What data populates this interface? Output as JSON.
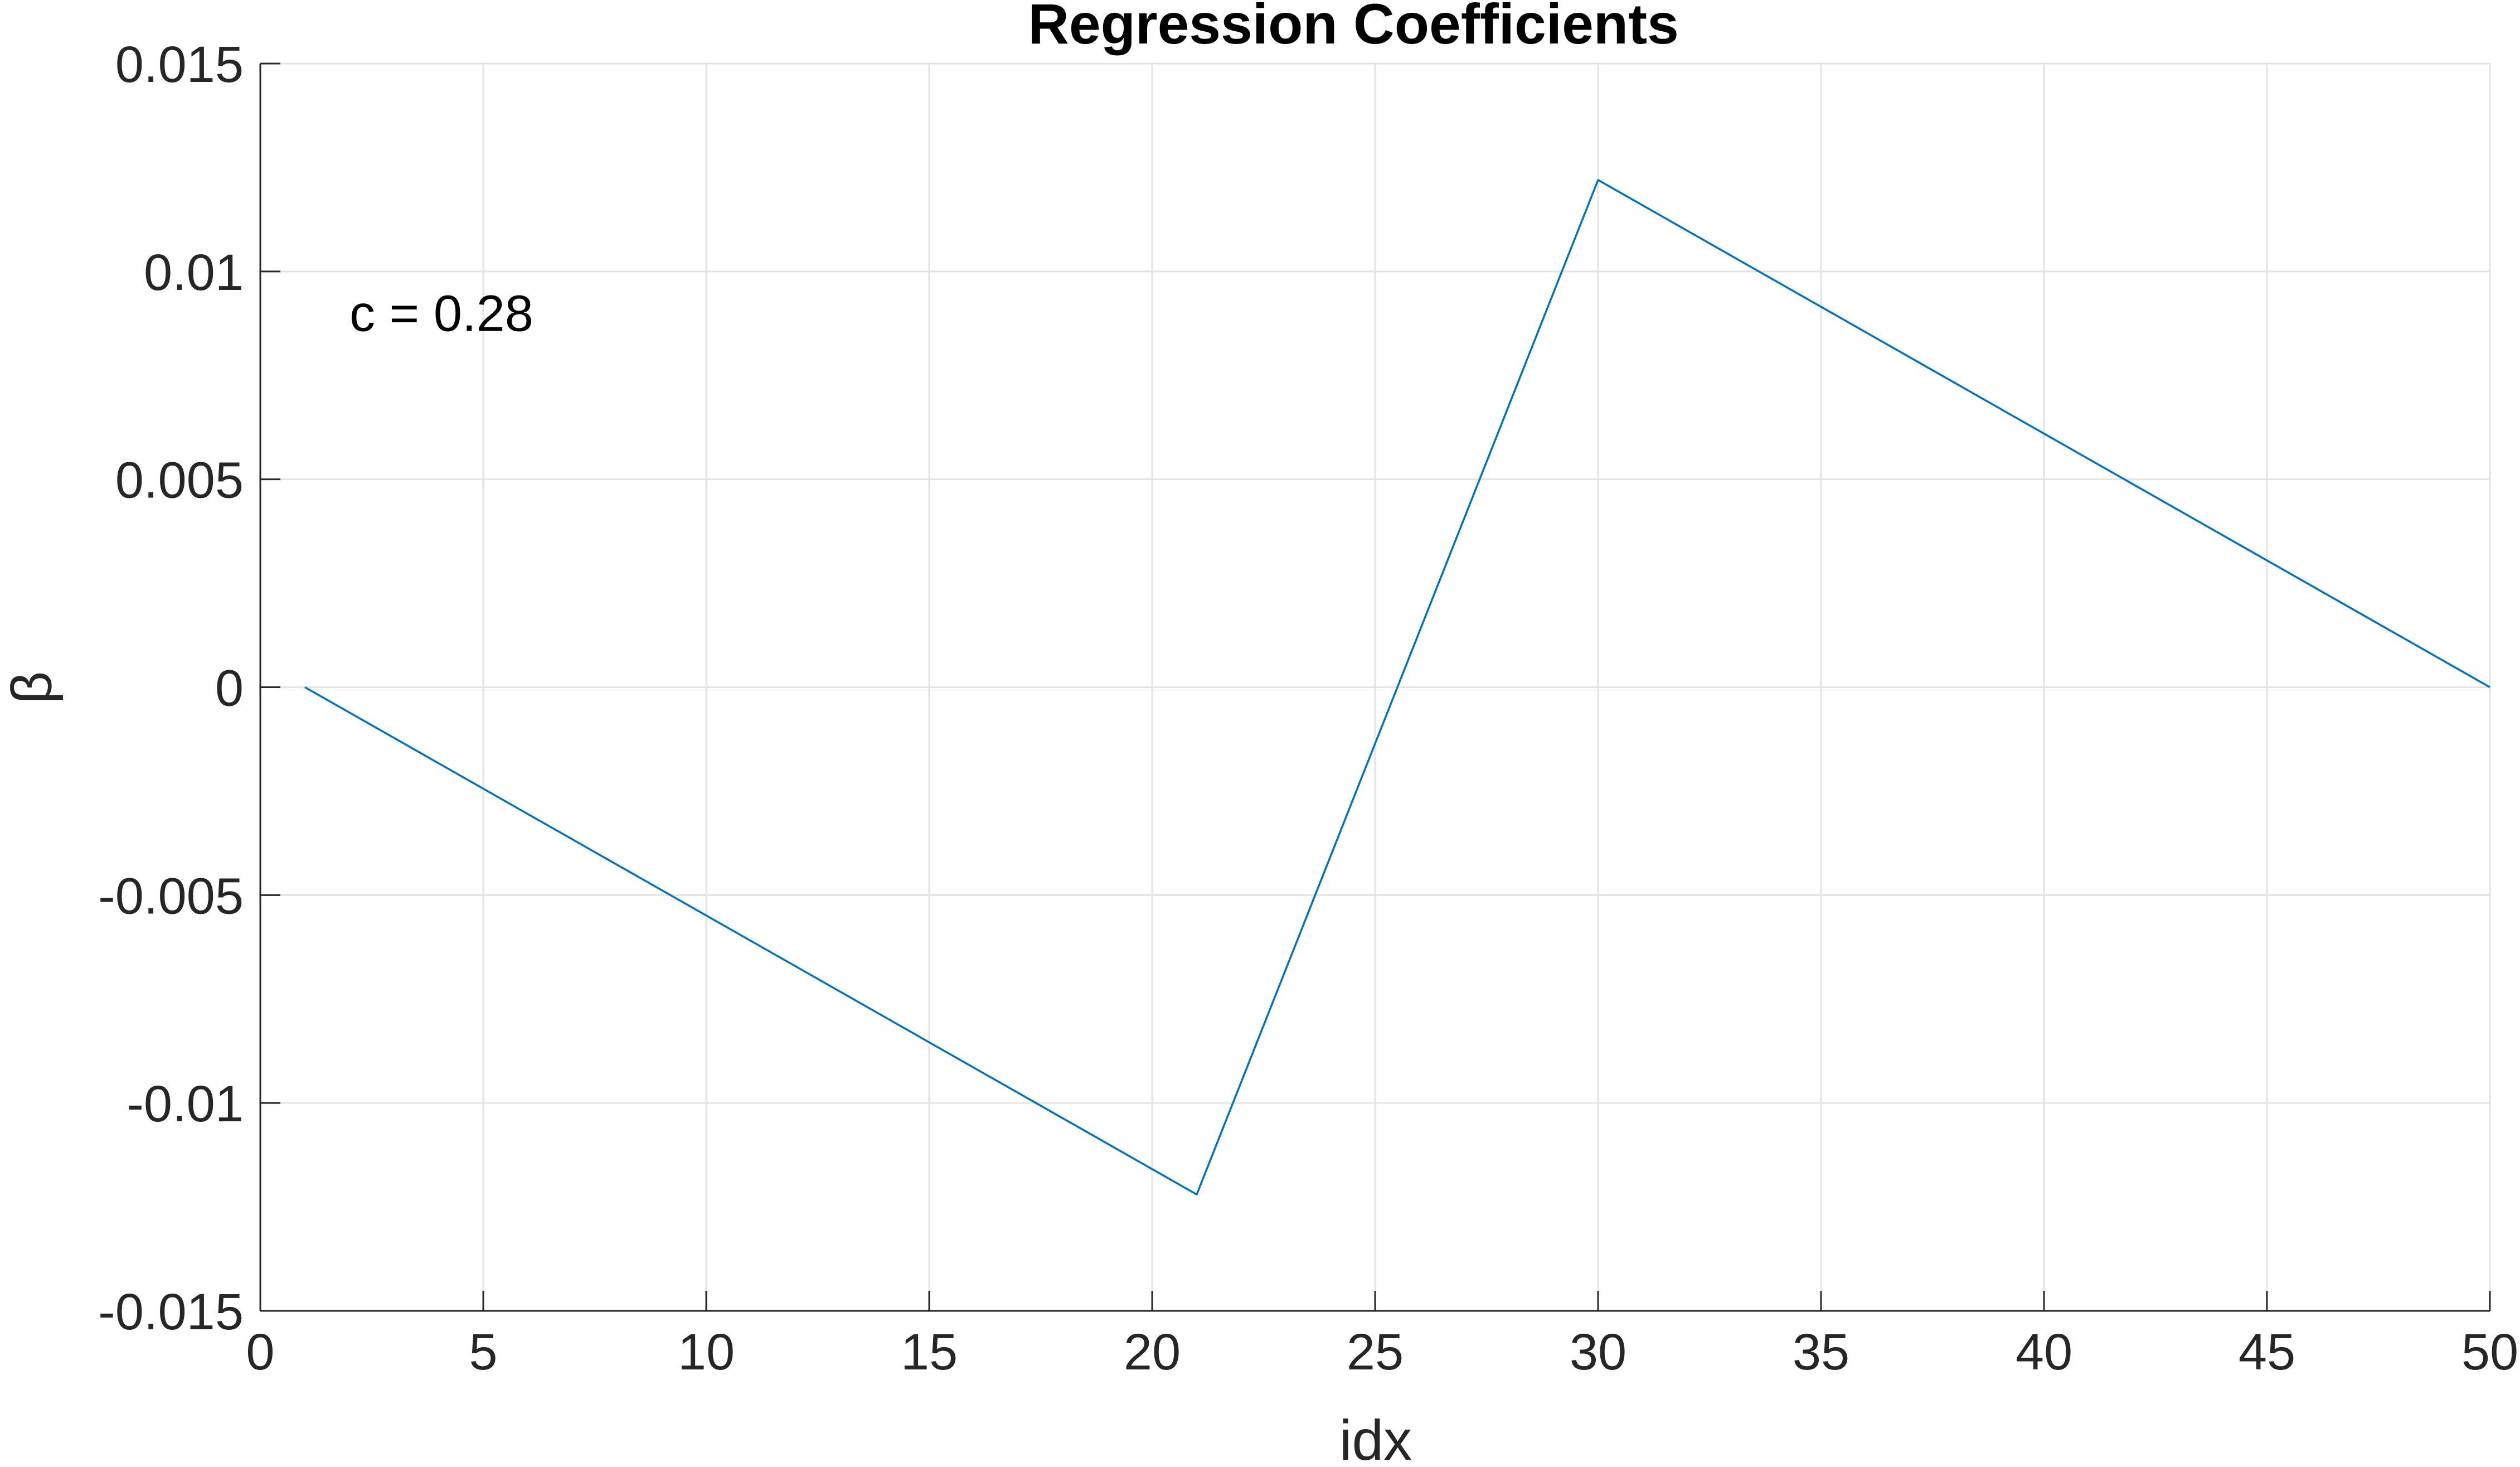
{
  "chart_data": {
    "type": "line",
    "title": "Regression Coefficients",
    "xlabel": "idx",
    "ylabel": "β",
    "xlim": [
      0,
      50
    ],
    "ylim": [
      -0.015,
      0.015
    ],
    "xticks": [
      0,
      5,
      10,
      15,
      20,
      25,
      30,
      35,
      40,
      45,
      50
    ],
    "xtick_labels": [
      "0",
      "5",
      "10",
      "15",
      "20",
      "25",
      "30",
      "35",
      "40",
      "45",
      "50"
    ],
    "yticks": [
      0.015,
      0.01,
      0.005,
      0,
      -0.005,
      -0.01,
      -0.015
    ],
    "ytick_labels": [
      "0.015",
      "0.01",
      "0.005",
      "0",
      "-0.005",
      "-0.01",
      "-0.015"
    ],
    "grid": true,
    "legend": "none",
    "series": [
      {
        "color": "#0072BD",
        "x": [
          1,
          21,
          30,
          50
        ],
        "y": [
          0,
          -0.0122,
          0.0122,
          0
        ]
      }
    ],
    "annotations": [
      {
        "text": "c = 0.28",
        "x": 2,
        "y": 0.009
      }
    ]
  }
}
